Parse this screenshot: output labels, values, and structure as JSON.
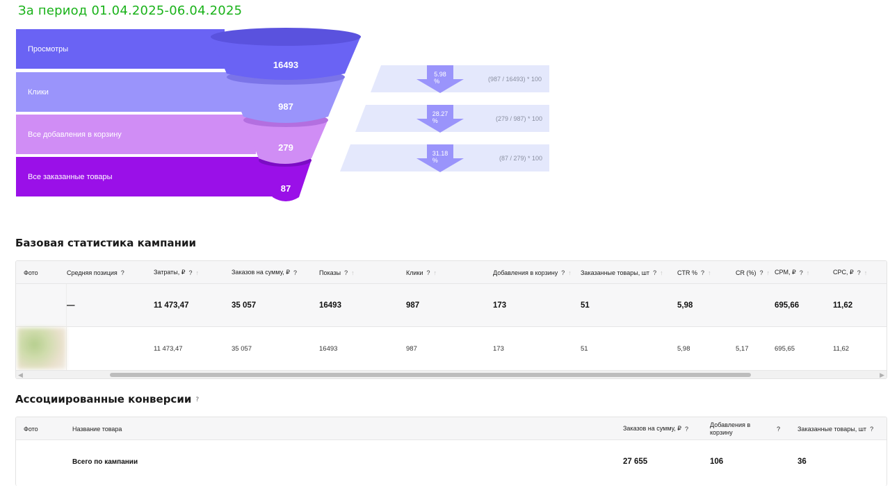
{
  "period": "За период 01.04.2025-06.04.2025",
  "funnel": {
    "stages": [
      {
        "label": "Просмотры",
        "value": "16493",
        "color": "#6a63f4"
      },
      {
        "label": "Клики",
        "value": "987",
        "color": "#9a94fb"
      },
      {
        "label": "Все добавления в корзину",
        "value": "279",
        "color": "#d08df5"
      },
      {
        "label": "Все заказанные товары",
        "value": "87",
        "color": "#9a10e8"
      }
    ],
    "conversions": [
      {
        "pct": "5.98 %",
        "formula": "(987 / 16493) * 100"
      },
      {
        "pct": "28.27 %",
        "formula": "(279 / 987) * 100"
      },
      {
        "pct": "31.18 %",
        "formula": "(87 / 279) * 100"
      }
    ]
  },
  "base_stats": {
    "title": "Базовая статистика кампании",
    "columns": {
      "photo": "Фото",
      "avg_pos": "Средняя позиция",
      "cost": "Затраты, ₽",
      "orders_sum": "Заказов на сумму, ₽",
      "shows": "Показы",
      "clicks": "Клики",
      "cart_adds": "Добавления в корзину",
      "ordered": "Заказанные товары, шт",
      "ctr": "CTR %",
      "cr": "CR (%)",
      "cpm": "CPM, ₽",
      "cpc": "CPC, ₽"
    },
    "total": {
      "avg_pos": "—",
      "cost": "11 473,47",
      "orders_sum": "35 057",
      "shows": "16493",
      "clicks": "987",
      "cart_adds": "173",
      "ordered": "51",
      "ctr": "5,98",
      "cr": "",
      "cpm": "695,66",
      "cpc": "11,62"
    },
    "item": {
      "avg_pos": "",
      "cost": "11 473,47",
      "orders_sum": "35 057",
      "shows": "16493",
      "clicks": "987",
      "cart_adds": "173",
      "ordered": "51",
      "ctr": "5,98",
      "cr": "5,17",
      "cpm": "695,65",
      "cpc": "11,62"
    },
    "qmark": "?",
    "sort_arrow": "↑"
  },
  "assoc": {
    "title": "Ассоциированные конверсии",
    "title_q": "?",
    "columns": {
      "photo": "Фото",
      "name": "Название товара",
      "orders_sum": "Заказов на сумму, ₽",
      "cart_adds": "Добавления в корзину",
      "ordered": "Заказанные товары, шт"
    },
    "total": {
      "name": "Всего по кампании",
      "orders_sum": "27 655",
      "cart_adds": "106",
      "ordered": "36"
    }
  },
  "scroll": {
    "left": "◀",
    "right": "▶"
  }
}
